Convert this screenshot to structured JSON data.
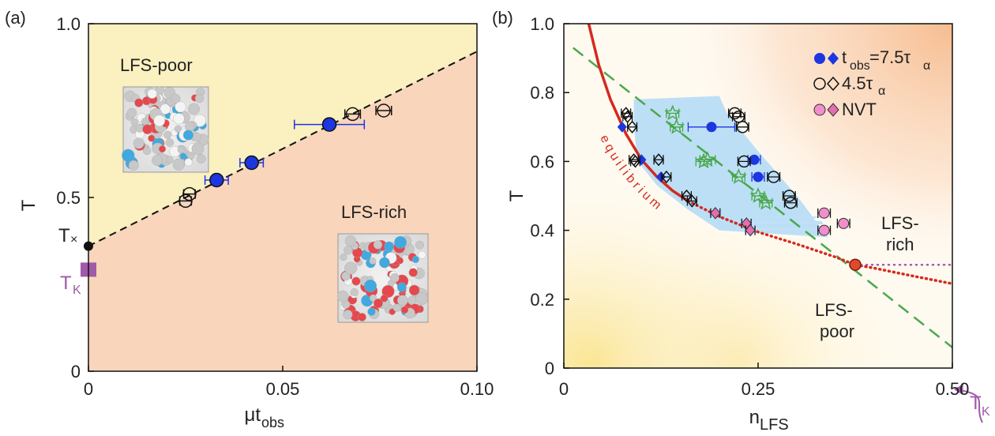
{
  "chart_data": [
    {
      "type": "scatter",
      "panel_label": "(a)",
      "xlabel_main": "μt",
      "xlabel_sub": "obs",
      "ylabel": "T",
      "xlim": [
        0,
        0.1
      ],
      "ylim": [
        0,
        1.0
      ],
      "x_ticks": [
        0,
        0.05,
        0.1
      ],
      "x_tick_labels": [
        "0",
        "0.05",
        "0.10"
      ],
      "y_ticks": [
        0,
        0.5,
        1.0
      ],
      "y_tick_labels": [
        "0",
        "0.5",
        "1.0"
      ],
      "background": {
        "upper_color": "#faf0c0",
        "lower_color": "#f9d5bb"
      },
      "boundary_line": {
        "x": [
          0,
          0.1
        ],
        "y": [
          0.36,
          0.92
        ],
        "style": "dashed",
        "color": "#111111"
      },
      "regions": [
        {
          "label": "LFS-poor",
          "x": 0.008,
          "y": 0.85
        },
        {
          "label": "LFS-rich",
          "x": 0.066,
          "y": 0.41
        }
      ],
      "annotations": [
        {
          "label": "T",
          "sub": "×",
          "x": 0,
          "y": 0.36,
          "color": "#111111",
          "marker": "dot"
        },
        {
          "label": "T",
          "sub": "K",
          "x": 0,
          "y": 0.29,
          "color": "#a05aa8",
          "marker": "square"
        }
      ],
      "series": [
        {
          "marker": "filled-circle",
          "color": "#1c36e0",
          "x": [
            0.033,
            0.042,
            0.062
          ],
          "y": [
            0.55,
            0.6,
            0.71
          ],
          "xerr": [
            0.003,
            0.003,
            0.009
          ]
        },
        {
          "marker": "open-circle",
          "color": "#111111",
          "x": [
            0.025,
            0.026,
            0.068,
            0.076
          ],
          "y": [
            0.49,
            0.51,
            0.74,
            0.75
          ],
          "xerr": [
            0.0015,
            0.0015,
            0.002,
            0.002
          ]
        }
      ]
    },
    {
      "type": "scatter",
      "panel_label": "(b)",
      "xlabel_main": "n",
      "xlabel_sub": "LFS",
      "ylabel": "T",
      "xlim": [
        0,
        0.5
      ],
      "ylim": [
        0,
        1.0
      ],
      "x_ticks": [
        0,
        0.25,
        0.5
      ],
      "x_tick_labels": [
        "0",
        "0.25",
        "0.50"
      ],
      "y_ticks": [
        0,
        0.2,
        0.4,
        0.6,
        0.8,
        1.0
      ],
      "y_tick_labels": [
        "0",
        "0.2",
        "0.4",
        "0.6",
        "0.8",
        "1.0"
      ],
      "regions": [
        {
          "label_lines": [
            "LFS-",
            "rich"
          ],
          "x": 0.437,
          "y": 0.44
        },
        {
          "label_lines": [
            "LFS-",
            "poor"
          ],
          "x": 0.368,
          "y": 0.19
        }
      ],
      "equilibrium_label": "equilibrium",
      "equilibrium_curve": {
        "color": "#d42a1e",
        "solid_x": [
          0.032,
          0.045,
          0.06,
          0.08,
          0.1,
          0.12,
          0.14,
          0.16
        ],
        "solid_y": [
          1.0,
          0.88,
          0.78,
          0.68,
          0.605,
          0.555,
          0.515,
          0.485
        ],
        "dotted_x": [
          0.16,
          0.2,
          0.25,
          0.3,
          0.35,
          0.375,
          0.4,
          0.45,
          0.5
        ],
        "dotted_y": [
          0.485,
          0.44,
          0.395,
          0.36,
          0.322,
          0.3,
          0.29,
          0.267,
          0.245
        ]
      },
      "dashed_line": {
        "x": [
          0.012,
          0.5
        ],
        "y": [
          0.93,
          0.06
        ],
        "color": "#4aa84a"
      },
      "kauzmann_line": {
        "x": [
          0.375,
          0.5
        ],
        "y": 0.3,
        "color": "#a05aa8"
      },
      "critical_point": {
        "x": 0.375,
        "y": 0.3,
        "color": "#e04a2a"
      },
      "tk_label": {
        "label": "T",
        "sub": "K"
      },
      "legend": {
        "position": "top-right",
        "entries": [
          {
            "label": "t",
            "sub": "obs",
            "rest": "=7.5τ",
            "rest_sub": "α",
            "marker": "blue-circle-diamond"
          },
          {
            "label": "4.5τ",
            "sub": "α",
            "marker": "open-circle-diamond"
          },
          {
            "label": "NVT",
            "marker": "pink-circle-diamond"
          }
        ]
      },
      "series": [
        {
          "marker": "filled-circle",
          "color": "#1c36e0",
          "x": [
            0.19,
            0.245,
            0.25
          ],
          "y": [
            0.7,
            0.605,
            0.555
          ],
          "xerr": [
            0.03,
            0.008,
            0.008
          ]
        },
        {
          "marker": "filled-diamond",
          "color": "#1c36e0",
          "x": [
            0.075,
            0.1,
            0.125
          ],
          "y": [
            0.7,
            0.605,
            0.555
          ],
          "xerr": [
            0,
            0,
            0
          ]
        },
        {
          "marker": "open-circle",
          "color": "#111111",
          "x": [
            0.22,
            0.225,
            0.23,
            0.232,
            0.27,
            0.29,
            0.292
          ],
          "y": [
            0.74,
            0.73,
            0.7,
            0.6,
            0.555,
            0.5,
            0.48
          ],
          "xerr": [
            0.008,
            0.008,
            0.008,
            0.008,
            0.008,
            0.008,
            0.008
          ]
        },
        {
          "marker": "open-diamond",
          "color": "#111111",
          "x": [
            0.08,
            0.082,
            0.088,
            0.09,
            0.092,
            0.122,
            0.132,
            0.158,
            0.165
          ],
          "y": [
            0.74,
            0.73,
            0.7,
            0.605,
            0.6,
            0.605,
            0.555,
            0.5,
            0.485
          ],
          "xerr": [
            0.006,
            0.006,
            0.006,
            0.006,
            0.006,
            0.006,
            0.006,
            0.006,
            0.006
          ]
        },
        {
          "marker": "open-star",
          "color": "#4aa84a",
          "x": [
            0.14,
            0.145,
            0.18,
            0.185,
            0.225,
            0.25,
            0.26
          ],
          "y": [
            0.74,
            0.7,
            0.6,
            0.605,
            0.555,
            0.5,
            0.48
          ],
          "xerr": [
            0.008,
            0.008,
            0.01,
            0.01,
            0.008,
            0.008,
            0.008
          ]
        },
        {
          "marker": "pink-circle",
          "color": "#f28dcc",
          "x": [
            0.335,
            0.335,
            0.36
          ],
          "y": [
            0.45,
            0.4,
            0.42
          ],
          "xerr": [
            0.008,
            0.008,
            0.008
          ]
        },
        {
          "marker": "pink-diamond",
          "color": "#e56db2",
          "x": [
            0.195,
            0.235,
            0.24
          ],
          "y": [
            0.45,
            0.42,
            0.4
          ],
          "xerr": [
            0.006,
            0.006,
            0.006
          ]
        }
      ]
    }
  ]
}
